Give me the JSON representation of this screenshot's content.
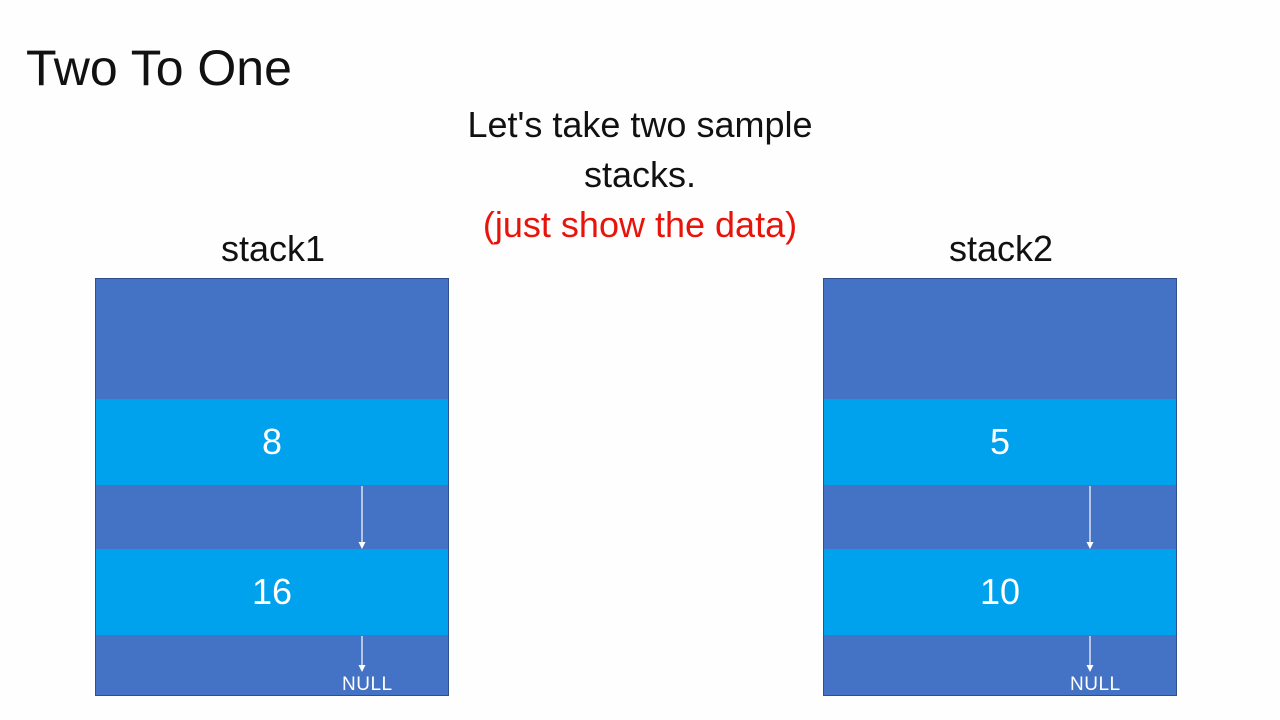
{
  "title": "Two To One",
  "caption": {
    "line1": "Let's take two sample",
    "line2": "stacks.",
    "note": "(just show the data)"
  },
  "colors": {
    "stack_background": "#4472c4",
    "node_fill": "#00a2ed",
    "note_red": "#e8140a"
  },
  "stacks": [
    {
      "label": "stack1",
      "nodes": [
        "8",
        "16"
      ],
      "terminator": "NULL"
    },
    {
      "label": "stack2",
      "nodes": [
        "5",
        "10"
      ],
      "terminator": "NULL"
    }
  ]
}
